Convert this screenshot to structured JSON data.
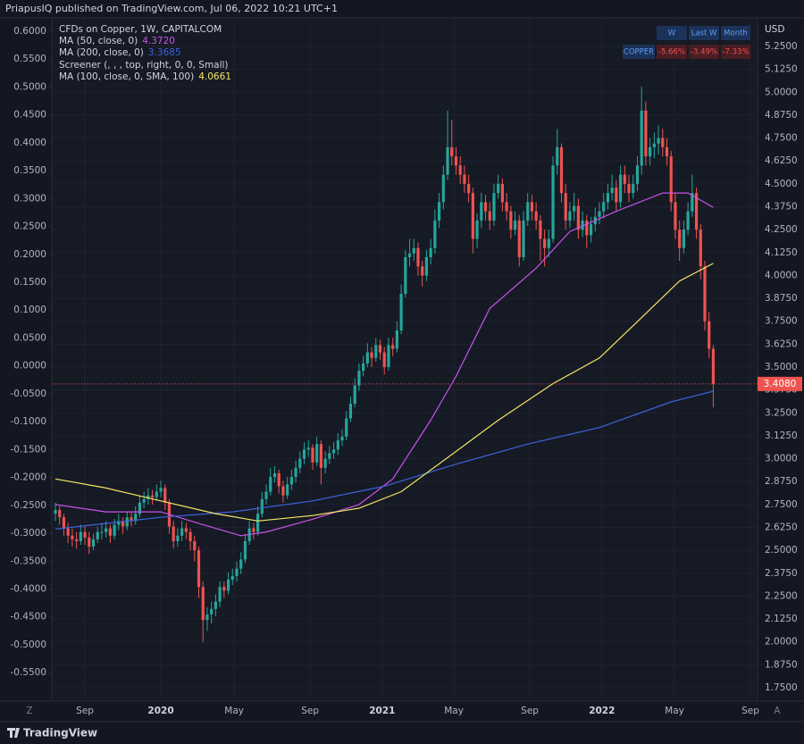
{
  "header": "PriapusIQ published on TradingView.com, Jul 06, 2022 10:21 UTC+1",
  "footer": "TradingView",
  "buttons": [
    "Z",
    "A"
  ],
  "chart_data": {
    "type": "candlestick",
    "title": "CFDs on Copper, 1W, CAPITALCOM",
    "currency": "USD",
    "up_color": "#26a69a",
    "down_color": "#ef5350",
    "grid": true,
    "candles": [
      [
        2.7,
        2.76,
        2.66,
        2.72
      ],
      [
        2.72,
        2.74,
        2.64,
        2.68
      ],
      [
        2.68,
        2.7,
        2.58,
        2.62
      ],
      [
        2.62,
        2.65,
        2.54,
        2.58
      ],
      [
        2.58,
        2.62,
        2.52,
        2.56
      ],
      [
        2.56,
        2.6,
        2.51,
        2.55
      ],
      [
        2.55,
        2.64,
        2.53,
        2.6
      ],
      [
        2.6,
        2.63,
        2.53,
        2.57
      ],
      [
        2.57,
        2.6,
        2.48,
        2.52
      ],
      [
        2.52,
        2.59,
        2.5,
        2.56
      ],
      [
        2.56,
        2.63,
        2.54,
        2.6
      ],
      [
        2.6,
        2.65,
        2.56,
        2.6
      ],
      [
        2.6,
        2.66,
        2.57,
        2.62
      ],
      [
        2.62,
        2.64,
        2.54,
        2.58
      ],
      [
        2.58,
        2.67,
        2.56,
        2.64
      ],
      [
        2.64,
        2.7,
        2.61,
        2.66
      ],
      [
        2.66,
        2.68,
        2.59,
        2.63
      ],
      [
        2.63,
        2.71,
        2.61,
        2.68
      ],
      [
        2.68,
        2.71,
        2.63,
        2.66
      ],
      [
        2.66,
        2.74,
        2.64,
        2.7
      ],
      [
        2.7,
        2.8,
        2.68,
        2.76
      ],
      [
        2.76,
        2.82,
        2.73,
        2.78
      ],
      [
        2.78,
        2.84,
        2.75,
        2.8
      ],
      [
        2.8,
        2.83,
        2.75,
        2.79
      ],
      [
        2.79,
        2.86,
        2.77,
        2.82
      ],
      [
        2.82,
        2.88,
        2.79,
        2.84
      ],
      [
        2.84,
        2.86,
        2.72,
        2.76
      ],
      [
        2.76,
        2.78,
        2.59,
        2.63
      ],
      [
        2.63,
        2.66,
        2.51,
        2.55
      ],
      [
        2.55,
        2.62,
        2.52,
        2.58
      ],
      [
        2.58,
        2.66,
        2.55,
        2.62
      ],
      [
        2.62,
        2.65,
        2.56,
        2.6
      ],
      [
        2.6,
        2.62,
        2.5,
        2.55
      ],
      [
        2.55,
        2.58,
        2.44,
        2.5
      ],
      [
        2.5,
        2.52,
        2.24,
        2.3
      ],
      [
        2.3,
        2.33,
        2.0,
        2.12
      ],
      [
        2.12,
        2.19,
        2.06,
        2.15
      ],
      [
        2.15,
        2.22,
        2.1,
        2.18
      ],
      [
        2.18,
        2.26,
        2.14,
        2.22
      ],
      [
        2.22,
        2.33,
        2.19,
        2.3
      ],
      [
        2.3,
        2.33,
        2.24,
        2.28
      ],
      [
        2.28,
        2.38,
        2.26,
        2.34
      ],
      [
        2.34,
        2.4,
        2.31,
        2.36
      ],
      [
        2.36,
        2.44,
        2.33,
        2.4
      ],
      [
        2.4,
        2.49,
        2.37,
        2.45
      ],
      [
        2.45,
        2.59,
        2.43,
        2.55
      ],
      [
        2.55,
        2.66,
        2.53,
        2.62
      ],
      [
        2.62,
        2.65,
        2.56,
        2.6
      ],
      [
        2.6,
        2.74,
        2.58,
        2.7
      ],
      [
        2.7,
        2.82,
        2.68,
        2.78
      ],
      [
        2.78,
        2.86,
        2.75,
        2.82
      ],
      [
        2.82,
        2.95,
        2.8,
        2.9
      ],
      [
        2.9,
        2.96,
        2.87,
        2.92
      ],
      [
        2.92,
        2.94,
        2.81,
        2.85
      ],
      [
        2.85,
        2.88,
        2.76,
        2.8
      ],
      [
        2.8,
        2.9,
        2.78,
        2.86
      ],
      [
        2.86,
        2.94,
        2.83,
        2.9
      ],
      [
        2.9,
        2.99,
        2.87,
        2.95
      ],
      [
        2.95,
        3.04,
        2.92,
        3.0
      ],
      [
        3.0,
        3.09,
        2.97,
        3.05
      ],
      [
        3.05,
        3.1,
        3.01,
        3.06
      ],
      [
        3.06,
        3.08,
        2.94,
        2.98
      ],
      [
        2.98,
        3.12,
        2.96,
        3.08
      ],
      [
        3.08,
        3.1,
        2.86,
        2.95
      ],
      [
        2.95,
        3.04,
        2.92,
        3.0
      ],
      [
        3.0,
        3.07,
        2.97,
        3.03
      ],
      [
        3.03,
        3.09,
        3.0,
        3.05
      ],
      [
        3.05,
        3.14,
        3.02,
        3.1
      ],
      [
        3.1,
        3.16,
        3.07,
        3.12
      ],
      [
        3.12,
        3.26,
        3.1,
        3.22
      ],
      [
        3.22,
        3.34,
        3.2,
        3.3
      ],
      [
        3.3,
        3.44,
        3.28,
        3.4
      ],
      [
        3.4,
        3.52,
        3.37,
        3.48
      ],
      [
        3.48,
        3.56,
        3.45,
        3.52
      ],
      [
        3.52,
        3.63,
        3.5,
        3.58
      ],
      [
        3.58,
        3.61,
        3.5,
        3.55
      ],
      [
        3.55,
        3.66,
        3.53,
        3.62
      ],
      [
        3.62,
        3.65,
        3.54,
        3.58
      ],
      [
        3.58,
        3.61,
        3.46,
        3.5
      ],
      [
        3.5,
        3.66,
        3.48,
        3.62
      ],
      [
        3.62,
        3.66,
        3.56,
        3.6
      ],
      [
        3.6,
        3.75,
        3.58,
        3.7
      ],
      [
        3.7,
        3.95,
        3.68,
        3.9
      ],
      [
        3.9,
        4.14,
        3.88,
        4.1
      ],
      [
        4.1,
        4.2,
        4.05,
        4.12
      ],
      [
        4.12,
        4.2,
        4.08,
        4.15
      ],
      [
        4.15,
        4.18,
        4.0,
        4.05
      ],
      [
        4.05,
        4.08,
        3.94,
        4.0
      ],
      [
        4.0,
        4.14,
        3.97,
        4.1
      ],
      [
        4.1,
        4.2,
        4.06,
        4.15
      ],
      [
        4.15,
        4.36,
        4.12,
        4.3
      ],
      [
        4.3,
        4.45,
        4.26,
        4.4
      ],
      [
        4.4,
        4.6,
        4.36,
        4.55
      ],
      [
        4.55,
        4.9,
        4.52,
        4.7
      ],
      [
        4.7,
        4.85,
        4.6,
        4.65
      ],
      [
        4.65,
        4.7,
        4.55,
        4.6
      ],
      [
        4.6,
        4.65,
        4.5,
        4.55
      ],
      [
        4.55,
        4.6,
        4.45,
        4.5
      ],
      [
        4.5,
        4.55,
        4.4,
        4.45
      ],
      [
        4.45,
        4.48,
        4.12,
        4.2
      ],
      [
        4.2,
        4.34,
        4.15,
        4.3
      ],
      [
        4.3,
        4.45,
        4.26,
        4.4
      ],
      [
        4.4,
        4.44,
        4.3,
        4.35
      ],
      [
        4.35,
        4.4,
        4.25,
        4.3
      ],
      [
        4.3,
        4.5,
        4.27,
        4.45
      ],
      [
        4.45,
        4.55,
        4.42,
        4.5
      ],
      [
        4.5,
        4.53,
        4.35,
        4.4
      ],
      [
        4.4,
        4.45,
        4.3,
        4.35
      ],
      [
        4.35,
        4.38,
        4.2,
        4.25
      ],
      [
        4.25,
        4.35,
        4.22,
        4.3
      ],
      [
        4.3,
        4.33,
        4.05,
        4.1
      ],
      [
        4.1,
        4.35,
        4.08,
        4.3
      ],
      [
        4.3,
        4.45,
        4.27,
        4.4
      ],
      [
        4.4,
        4.44,
        4.3,
        4.35
      ],
      [
        4.35,
        4.4,
        4.25,
        4.3
      ],
      [
        4.3,
        4.33,
        4.08,
        4.2
      ],
      [
        4.2,
        4.25,
        4.05,
        4.15
      ],
      [
        4.15,
        4.25,
        4.1,
        4.2
      ],
      [
        4.2,
        4.65,
        4.18,
        4.6
      ],
      [
        4.6,
        4.8,
        4.55,
        4.7
      ],
      [
        4.7,
        4.72,
        4.4,
        4.45
      ],
      [
        4.45,
        4.5,
        4.25,
        4.3
      ],
      [
        4.3,
        4.4,
        4.26,
        4.35
      ],
      [
        4.35,
        4.45,
        4.3,
        4.38
      ],
      [
        4.38,
        4.42,
        4.2,
        4.25
      ],
      [
        4.25,
        4.35,
        4.21,
        4.3
      ],
      [
        4.3,
        4.33,
        4.15,
        4.22
      ],
      [
        4.22,
        4.32,
        4.18,
        4.28
      ],
      [
        4.28,
        4.37,
        4.24,
        4.32
      ],
      [
        4.32,
        4.4,
        4.28,
        4.35
      ],
      [
        4.35,
        4.45,
        4.31,
        4.4
      ],
      [
        4.4,
        4.5,
        4.36,
        4.45
      ],
      [
        4.45,
        4.55,
        4.41,
        4.48
      ],
      [
        4.48,
        4.52,
        4.35,
        4.4
      ],
      [
        4.4,
        4.6,
        4.37,
        4.55
      ],
      [
        4.55,
        4.6,
        4.45,
        4.5
      ],
      [
        4.5,
        4.55,
        4.4,
        4.45
      ],
      [
        4.45,
        4.55,
        4.42,
        4.5
      ],
      [
        4.5,
        4.65,
        4.46,
        4.6
      ],
      [
        4.6,
        5.03,
        4.55,
        4.9
      ],
      [
        4.9,
        4.95,
        4.6,
        4.65
      ],
      [
        4.65,
        4.75,
        4.6,
        4.7
      ],
      [
        4.7,
        4.78,
        4.64,
        4.72
      ],
      [
        4.72,
        4.82,
        4.66,
        4.75
      ],
      [
        4.75,
        4.8,
        4.65,
        4.7
      ],
      [
        4.7,
        4.75,
        4.6,
        4.65
      ],
      [
        4.65,
        4.68,
        4.35,
        4.4
      ],
      [
        4.4,
        4.45,
        4.2,
        4.25
      ],
      [
        4.25,
        4.3,
        4.08,
        4.15
      ],
      [
        4.15,
        4.3,
        4.12,
        4.25
      ],
      [
        4.25,
        4.4,
        4.22,
        4.35
      ],
      [
        4.35,
        4.55,
        4.32,
        4.45
      ],
      [
        4.45,
        4.48,
        4.2,
        4.25
      ],
      [
        4.25,
        4.28,
        3.98,
        4.05
      ],
      [
        4.05,
        4.08,
        3.7,
        3.75
      ],
      [
        3.75,
        3.8,
        3.55,
        3.6
      ],
      [
        3.6,
        3.62,
        3.28,
        3.408
      ]
    ],
    "last_value_label": "3.4080",
    "series": [
      {
        "name": "MA (50, close, 0)",
        "color": "#c653e8",
        "axis": "y2",
        "last_label": "4.3720",
        "x": [
          0,
          12,
          25,
          35,
          44,
          50,
          61,
          72,
          80,
          89,
          95,
          103,
          114,
          122,
          133,
          144,
          150,
          156
        ],
        "values": [
          2.75,
          2.71,
          2.71,
          2.64,
          2.58,
          2.6,
          2.67,
          2.75,
          2.89,
          3.21,
          3.45,
          3.82,
          4.04,
          4.24,
          4.35,
          4.45,
          4.45,
          4.372
        ]
      },
      {
        "name": "MA (200, close, 0)",
        "color": "#3d63d9",
        "axis": "y2",
        "last_label": "3.3685",
        "x": [
          0,
          25,
          42,
          61,
          78,
          95,
          112,
          129,
          146,
          156
        ],
        "values": [
          2.616,
          2.68,
          2.71,
          2.77,
          2.85,
          2.97,
          3.08,
          3.17,
          3.31,
          3.3685
        ]
      },
      {
        "name": "MA (100, close, 0, SMA, 100)",
        "color": "#f5e663",
        "axis": "y2",
        "last_label": "4.0661",
        "x": [
          0,
          12,
          25,
          38,
          48,
          61,
          72,
          82,
          95,
          105,
          118,
          129,
          139,
          148,
          156
        ],
        "values": [
          2.89,
          2.84,
          2.77,
          2.7,
          2.66,
          2.69,
          2.73,
          2.82,
          3.04,
          3.21,
          3.41,
          3.55,
          3.77,
          3.97,
          4.0661
        ]
      }
    ],
    "screener": {
      "name": "Screener (, , , top, right, 0, 0, Small)",
      "columns": [
        "W",
        "Last W",
        "Month"
      ],
      "rows": [
        [
          "COPPER",
          "-5.66%",
          "-3.49%",
          "-7.33%"
        ]
      ]
    },
    "xlim": [
      -0.85,
      166.5
    ],
    "xticks": [
      {
        "value": 7,
        "label": "Sep"
      },
      {
        "value": 25,
        "label": "2020"
      },
      {
        "value": 42.4,
        "label": "May"
      },
      {
        "value": 60.4,
        "label": "Sep"
      },
      {
        "value": 77.5,
        "label": "2021"
      },
      {
        "value": 94.5,
        "label": "May"
      },
      {
        "value": 112.5,
        "label": "Sep"
      },
      {
        "value": 129.6,
        "label": "2022"
      },
      {
        "value": 146.8,
        "label": "May"
      },
      {
        "value": 164.8,
        "label": "Sep"
      }
    ],
    "ylim": [
      -0.601,
      0.624
    ],
    "yticks": [
      {
        "value": 0.6,
        "label": "0.6000"
      },
      {
        "value": 0.55,
        "label": "0.5500"
      },
      {
        "value": 0.5,
        "label": "0.5000"
      },
      {
        "value": 0.45,
        "label": "0.4500"
      },
      {
        "value": 0.4,
        "label": "0.4000"
      },
      {
        "value": 0.35,
        "label": "0.3500"
      },
      {
        "value": 0.3,
        "label": "0.3000"
      },
      {
        "value": 0.25,
        "label": "0.2500"
      },
      {
        "value": 0.2,
        "label": "0.2000"
      },
      {
        "value": 0.15,
        "label": "0.1500"
      },
      {
        "value": 0.1,
        "label": "0.1000"
      },
      {
        "value": 0.05,
        "label": "0.0500"
      },
      {
        "value": 0,
        "label": "0.0000"
      },
      {
        "value": -0.05,
        "label": "-0.0500"
      },
      {
        "value": -0.1,
        "label": "-0.1000"
      },
      {
        "value": -0.15,
        "label": "-0.1500"
      },
      {
        "value": -0.2,
        "label": "-0.2000"
      },
      {
        "value": -0.25,
        "label": "-0.2500"
      },
      {
        "value": -0.3,
        "label": "-0.3000"
      },
      {
        "value": -0.35,
        "label": "-0.3500"
      },
      {
        "value": -0.4,
        "label": "-0.4000"
      },
      {
        "value": -0.45,
        "label": "-0.4500"
      },
      {
        "value": -0.5,
        "label": "-0.5000"
      },
      {
        "value": -0.55,
        "label": "-0.5500"
      }
    ],
    "y2lim": [
      1.677,
      5.406
    ],
    "y2ticks": [
      {
        "value": 5.25,
        "label": "5.2500"
      },
      {
        "value": 5.125,
        "label": "5.1250"
      },
      {
        "value": 5,
        "label": "5.0000"
      },
      {
        "value": 4.875,
        "label": "4.8750"
      },
      {
        "value": 4.75,
        "label": "4.7500"
      },
      {
        "value": 4.625,
        "label": "4.6250"
      },
      {
        "value": 4.5,
        "label": "4.5000"
      },
      {
        "value": 4.375,
        "label": "4.3750"
      },
      {
        "value": 4.25,
        "label": "4.2500"
      },
      {
        "value": 4.125,
        "label": "4.1250"
      },
      {
        "value": 4,
        "label": "4.0000"
      },
      {
        "value": 3.875,
        "label": "3.8750"
      },
      {
        "value": 3.75,
        "label": "3.7500"
      },
      {
        "value": 3.625,
        "label": "3.6250"
      },
      {
        "value": 3.5,
        "label": "3.5000"
      },
      {
        "value": 3.375,
        "label": "3.3750"
      },
      {
        "value": 3.25,
        "label": "3.2500"
      },
      {
        "value": 3.125,
        "label": "3.1250"
      },
      {
        "value": 3,
        "label": "3.0000"
      },
      {
        "value": 2.875,
        "label": "2.8750"
      },
      {
        "value": 2.75,
        "label": "2.7500"
      },
      {
        "value": 2.625,
        "label": "2.6250"
      },
      {
        "value": 2.5,
        "label": "2.5000"
      },
      {
        "value": 2.375,
        "label": "2.3750"
      },
      {
        "value": 2.25,
        "label": "2.2500"
      },
      {
        "value": 2.125,
        "label": "2.1250"
      },
      {
        "value": 2,
        "label": "2.0000"
      },
      {
        "value": 1.875,
        "label": "1.8750"
      },
      {
        "value": 1.75,
        "label": "1.7500"
      }
    ]
  }
}
